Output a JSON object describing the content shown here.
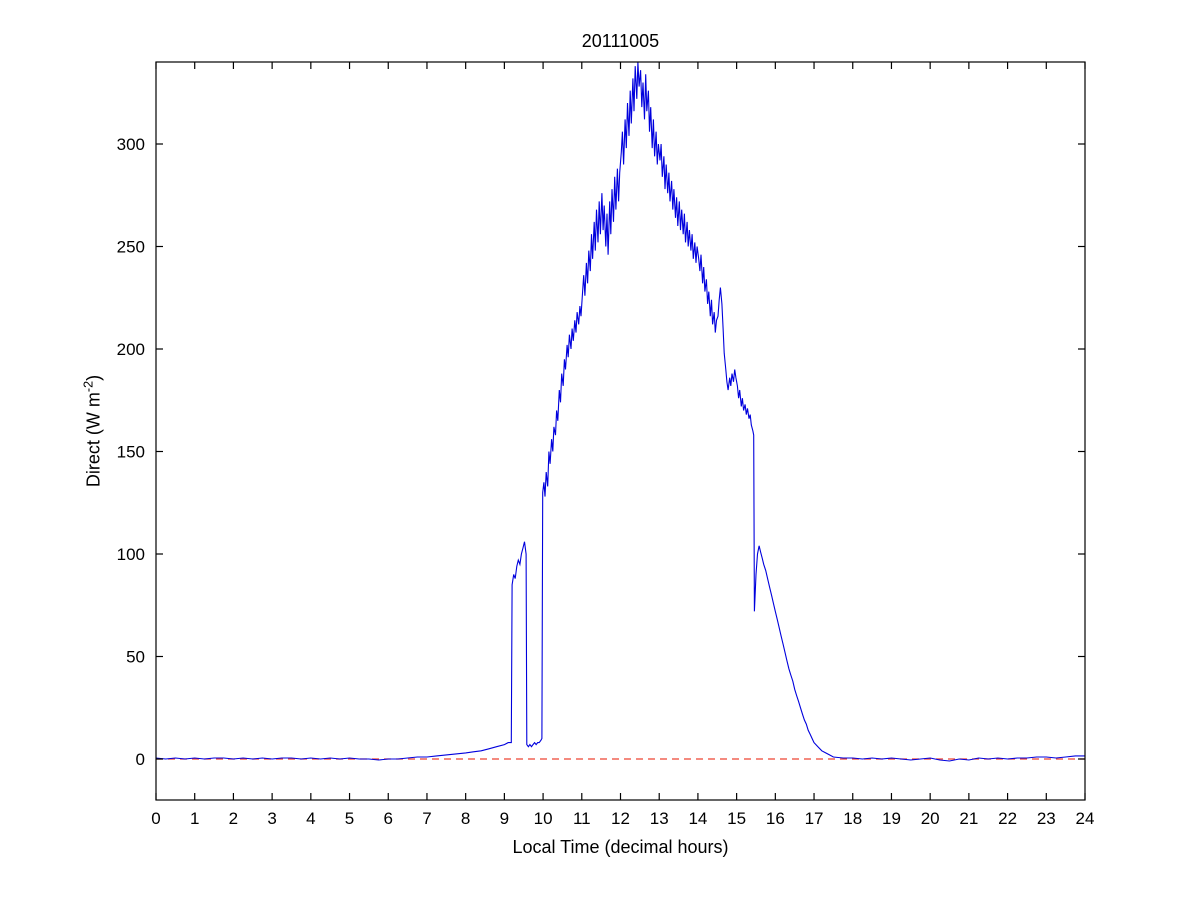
{
  "labels": {
    "ylabel_prefix": "Direct (W m",
    "ylabel_sup": "-2",
    "ylabel_suffix": ")"
  },
  "chart_data": {
    "type": "line",
    "title": "20111005",
    "xlabel": "Local Time (decimal hours)",
    "ylabel": "Direct (W m^-2)",
    "xlim": [
      0,
      24
    ],
    "ylim": [
      -20,
      340
    ],
    "xticks": [
      0,
      1,
      2,
      3,
      4,
      5,
      6,
      7,
      8,
      9,
      10,
      11,
      12,
      13,
      14,
      15,
      16,
      17,
      18,
      19,
      20,
      21,
      22,
      23,
      24
    ],
    "yticks": [
      0,
      50,
      100,
      150,
      200,
      250,
      300
    ],
    "grid": false,
    "legend": "none",
    "series": [
      {
        "name": "direct-irradiance",
        "color": "#0000dd",
        "style": "solid",
        "points": [
          [
            0,
            0.5
          ],
          [
            0.25,
            0
          ],
          [
            0.5,
            0.5
          ],
          [
            0.75,
            0
          ],
          [
            1,
            0.5
          ],
          [
            1.25,
            0
          ],
          [
            1.5,
            0.5
          ],
          [
            1.75,
            0.5
          ],
          [
            2,
            0
          ],
          [
            2.25,
            0.5
          ],
          [
            2.5,
            0
          ],
          [
            2.75,
            0.5
          ],
          [
            3,
            0
          ],
          [
            3.25,
            0.5
          ],
          [
            3.5,
            0.5
          ],
          [
            3.75,
            0
          ],
          [
            4,
            0.5
          ],
          [
            4.25,
            0
          ],
          [
            4.5,
            0.5
          ],
          [
            4.75,
            0
          ],
          [
            5,
            0.5
          ],
          [
            5.25,
            0
          ],
          [
            5.5,
            0
          ],
          [
            5.75,
            -0.5
          ],
          [
            6,
            0
          ],
          [
            6.25,
            0
          ],
          [
            6.5,
            0.5
          ],
          [
            6.75,
            1
          ],
          [
            7,
            1
          ],
          [
            7.25,
            1.5
          ],
          [
            7.5,
            2
          ],
          [
            7.75,
            2.5
          ],
          [
            8,
            3
          ],
          [
            8.2,
            3.5
          ],
          [
            8.4,
            4
          ],
          [
            8.6,
            5
          ],
          [
            8.8,
            6
          ],
          [
            9,
            7
          ],
          [
            9.1,
            8
          ],
          [
            9.18,
            8
          ],
          [
            9.2,
            85
          ],
          [
            9.24,
            90
          ],
          [
            9.28,
            88
          ],
          [
            9.32,
            94
          ],
          [
            9.36,
            97
          ],
          [
            9.4,
            95
          ],
          [
            9.44,
            100
          ],
          [
            9.48,
            103
          ],
          [
            9.52,
            106
          ],
          [
            9.56,
            100
          ],
          [
            9.58,
            7
          ],
          [
            9.62,
            6
          ],
          [
            9.66,
            7
          ],
          [
            9.7,
            6
          ],
          [
            9.74,
            7
          ],
          [
            9.78,
            8
          ],
          [
            9.82,
            7
          ],
          [
            9.86,
            8
          ],
          [
            9.9,
            8
          ],
          [
            9.94,
            9
          ],
          [
            9.97,
            10
          ],
          [
            9.99,
            130
          ],
          [
            10.02,
            135
          ],
          [
            10.05,
            128
          ],
          [
            10.08,
            140
          ],
          [
            10.12,
            133
          ],
          [
            10.15,
            150
          ],
          [
            10.18,
            144
          ],
          [
            10.22,
            156
          ],
          [
            10.25,
            150
          ],
          [
            10.28,
            162
          ],
          [
            10.32,
            158
          ],
          [
            10.35,
            170
          ],
          [
            10.38,
            165
          ],
          [
            10.42,
            180
          ],
          [
            10.45,
            174
          ],
          [
            10.48,
            188
          ],
          [
            10.52,
            182
          ],
          [
            10.55,
            195
          ],
          [
            10.58,
            190
          ],
          [
            10.62,
            202
          ],
          [
            10.65,
            196
          ],
          [
            10.68,
            207
          ],
          [
            10.72,
            200
          ],
          [
            10.75,
            210
          ],
          [
            10.78,
            204
          ],
          [
            10.82,
            214
          ],
          [
            10.85,
            208
          ],
          [
            10.88,
            218
          ],
          [
            10.92,
            212
          ],
          [
            10.95,
            221
          ],
          [
            10.98,
            216
          ],
          [
            11.02,
            228
          ],
          [
            11.05,
            236
          ],
          [
            11.08,
            226
          ],
          [
            11.12,
            242
          ],
          [
            11.15,
            232
          ],
          [
            11.18,
            248
          ],
          [
            11.22,
            238
          ],
          [
            11.25,
            256
          ],
          [
            11.28,
            244
          ],
          [
            11.32,
            262
          ],
          [
            11.35,
            248
          ],
          [
            11.38,
            268
          ],
          [
            11.42,
            252
          ],
          [
            11.45,
            272
          ],
          [
            11.48,
            256
          ],
          [
            11.52,
            276
          ],
          [
            11.55,
            258
          ],
          [
            11.58,
            270
          ],
          [
            11.62,
            250
          ],
          [
            11.65,
            266
          ],
          [
            11.68,
            246
          ],
          [
            11.72,
            272
          ],
          [
            11.75,
            256
          ],
          [
            11.78,
            278
          ],
          [
            11.82,
            262
          ],
          [
            11.85,
            284
          ],
          [
            11.88,
            268
          ],
          [
            11.92,
            288
          ],
          [
            11.95,
            272
          ],
          [
            11.98,
            286
          ],
          [
            12.02,
            296
          ],
          [
            12.05,
            306
          ],
          [
            12.08,
            290
          ],
          [
            12.12,
            312
          ],
          [
            12.15,
            298
          ],
          [
            12.18,
            320
          ],
          [
            12.22,
            304
          ],
          [
            12.25,
            326
          ],
          [
            12.28,
            310
          ],
          [
            12.32,
            332
          ],
          [
            12.35,
            316
          ],
          [
            12.38,
            338
          ],
          [
            12.42,
            322
          ],
          [
            12.45,
            340
          ],
          [
            12.48,
            328
          ],
          [
            12.52,
            336
          ],
          [
            12.55,
            318
          ],
          [
            12.58,
            330
          ],
          [
            12.62,
            312
          ],
          [
            12.65,
            334
          ],
          [
            12.68,
            316
          ],
          [
            12.72,
            326
          ],
          [
            12.75,
            306
          ],
          [
            12.78,
            318
          ],
          [
            12.82,
            298
          ],
          [
            12.85,
            312
          ],
          [
            12.88,
            294
          ],
          [
            12.92,
            306
          ],
          [
            12.95,
            290
          ],
          [
            12.98,
            300
          ],
          [
            13.02,
            292
          ],
          [
            13.05,
            300
          ],
          [
            13.08,
            284
          ],
          [
            13.12,
            294
          ],
          [
            13.15,
            278
          ],
          [
            13.18,
            290
          ],
          [
            13.22,
            276
          ],
          [
            13.25,
            286
          ],
          [
            13.28,
            272
          ],
          [
            13.32,
            282
          ],
          [
            13.35,
            268
          ],
          [
            13.38,
            278
          ],
          [
            13.42,
            264
          ],
          [
            13.45,
            274
          ],
          [
            13.48,
            260
          ],
          [
            13.52,
            272
          ],
          [
            13.55,
            258
          ],
          [
            13.58,
            268
          ],
          [
            13.62,
            256
          ],
          [
            13.65,
            266
          ],
          [
            13.68,
            252
          ],
          [
            13.72,
            262
          ],
          [
            13.75,
            250
          ],
          [
            13.78,
            258
          ],
          [
            13.82,
            248
          ],
          [
            13.85,
            256
          ],
          [
            13.88,
            244
          ],
          [
            13.92,
            252
          ],
          [
            13.95,
            242
          ],
          [
            13.98,
            250
          ],
          [
            14.02,
            244
          ],
          [
            14.05,
            238
          ],
          [
            14.08,
            246
          ],
          [
            14.12,
            232
          ],
          [
            14.15,
            240
          ],
          [
            14.18,
            228
          ],
          [
            14.22,
            234
          ],
          [
            14.25,
            222
          ],
          [
            14.28,
            228
          ],
          [
            14.32,
            216
          ],
          [
            14.35,
            224
          ],
          [
            14.38,
            212
          ],
          [
            14.42,
            218
          ],
          [
            14.45,
            208
          ],
          [
            14.48,
            214
          ],
          [
            14.52,
            216
          ],
          [
            14.55,
            224
          ],
          [
            14.58,
            230
          ],
          [
            14.62,
            222
          ],
          [
            14.65,
            210
          ],
          [
            14.68,
            198
          ],
          [
            14.72,
            190
          ],
          [
            14.75,
            184
          ],
          [
            14.78,
            180
          ],
          [
            14.82,
            186
          ],
          [
            14.85,
            182
          ],
          [
            14.88,
            188
          ],
          [
            14.92,
            184
          ],
          [
            14.95,
            190
          ],
          [
            14.98,
            186
          ],
          [
            15.02,
            182
          ],
          [
            15.05,
            176
          ],
          [
            15.08,
            180
          ],
          [
            15.12,
            172
          ],
          [
            15.15,
            176
          ],
          [
            15.18,
            170
          ],
          [
            15.22,
            173
          ],
          [
            15.25,
            168
          ],
          [
            15.28,
            171
          ],
          [
            15.32,
            166
          ],
          [
            15.35,
            168
          ],
          [
            15.38,
            163
          ],
          [
            15.42,
            160
          ],
          [
            15.44,
            158
          ],
          [
            15.46,
            72
          ],
          [
            15.5,
            90
          ],
          [
            15.54,
            100
          ],
          [
            15.58,
            104
          ],
          [
            15.62,
            101
          ],
          [
            15.66,
            98
          ],
          [
            15.7,
            95
          ],
          [
            15.75,
            92
          ],
          [
            15.8,
            88
          ],
          [
            15.85,
            84
          ],
          [
            15.9,
            80
          ],
          [
            15.95,
            76
          ],
          [
            16,
            72
          ],
          [
            16.05,
            68
          ],
          [
            16.1,
            64
          ],
          [
            16.15,
            60
          ],
          [
            16.2,
            56
          ],
          [
            16.25,
            52
          ],
          [
            16.3,
            48
          ],
          [
            16.35,
            44
          ],
          [
            16.4,
            41
          ],
          [
            16.45,
            38
          ],
          [
            16.5,
            34
          ],
          [
            16.55,
            31
          ],
          [
            16.6,
            28
          ],
          [
            16.65,
            25
          ],
          [
            16.7,
            22
          ],
          [
            16.75,
            19
          ],
          [
            16.8,
            17
          ],
          [
            16.85,
            14
          ],
          [
            16.9,
            12
          ],
          [
            16.95,
            10
          ],
          [
            17,
            8
          ],
          [
            17.1,
            6
          ],
          [
            17.2,
            4
          ],
          [
            17.3,
            3
          ],
          [
            17.4,
            2
          ],
          [
            17.5,
            1
          ],
          [
            17.75,
            0.5
          ],
          [
            18,
            0.5
          ],
          [
            18.25,
            0
          ],
          [
            18.5,
            0.5
          ],
          [
            18.75,
            0
          ],
          [
            19,
            0.5
          ],
          [
            19.25,
            0
          ],
          [
            19.5,
            -0.5
          ],
          [
            19.75,
            0
          ],
          [
            20,
            0.5
          ],
          [
            20.25,
            -0.5
          ],
          [
            20.5,
            -1
          ],
          [
            20.75,
            0
          ],
          [
            21,
            -0.5
          ],
          [
            21.25,
            0.5
          ],
          [
            21.5,
            0
          ],
          [
            21.75,
            0.5
          ],
          [
            22,
            0
          ],
          [
            22.25,
            0.5
          ],
          [
            22.5,
            0.5
          ],
          [
            22.75,
            1
          ],
          [
            23,
            1
          ],
          [
            23.25,
            0.5
          ],
          [
            23.5,
            1
          ],
          [
            23.75,
            1.5
          ],
          [
            24,
            1.5
          ]
        ]
      },
      {
        "name": "zero-reference",
        "color": "#ee4433",
        "style": "dashed",
        "y": 0
      }
    ]
  }
}
